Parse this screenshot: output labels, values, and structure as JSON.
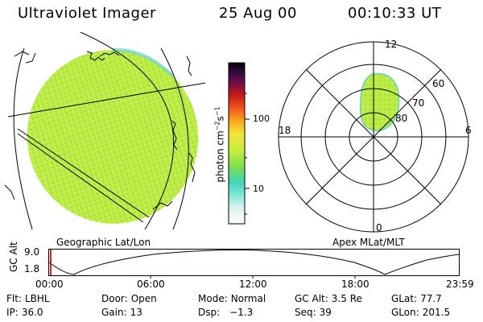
{
  "header": {
    "instrument": "Ultraviolet Imager",
    "date": "25 Aug 00",
    "time": "00:10:33 UT"
  },
  "colorbar": {
    "unit_label": "photon cm",
    "unit_exp_1": "−2",
    "unit_mid": "s",
    "unit_exp_2": "−1",
    "ticks": [
      "100",
      "10"
    ]
  },
  "panels": {
    "left_caption": "Geographic Lat/Lon",
    "right_caption": "Apex MLat/MLT"
  },
  "polar": {
    "mlt_labels": [
      "12",
      "18",
      "6",
      "0"
    ],
    "lat_labels": [
      "60",
      "70",
      "80"
    ]
  },
  "timeline": {
    "y_axis_label": "GC Alt",
    "y_ticks": [
      "9.0",
      "1.8"
    ],
    "x_ticks": [
      "00:00",
      "06:00",
      "12:00",
      "18:00",
      "23:59"
    ]
  },
  "status": [
    [
      {
        "label": "Flt:",
        "value": "LBHL"
      },
      {
        "label": "Door:",
        "value": "Open"
      },
      {
        "label": "Mode:",
        "value": "Normal"
      },
      {
        "label": "GC Alt:",
        "value": "3.5 Re"
      },
      {
        "label": "GLat:",
        "value": "77.7"
      }
    ],
    [
      {
        "label": "IP:",
        "value": "36.0"
      },
      {
        "label": "Gain:",
        "value": "13"
      },
      {
        "label": "Dsp:",
        "value": "−1.3"
      },
      {
        "label": "Seq:",
        "value": "39"
      },
      {
        "label": "GLon:",
        "value": "201.5"
      }
    ]
  ],
  "colors": {
    "disk_fill": "#b9ec3c",
    "marker": "#e02020"
  }
}
